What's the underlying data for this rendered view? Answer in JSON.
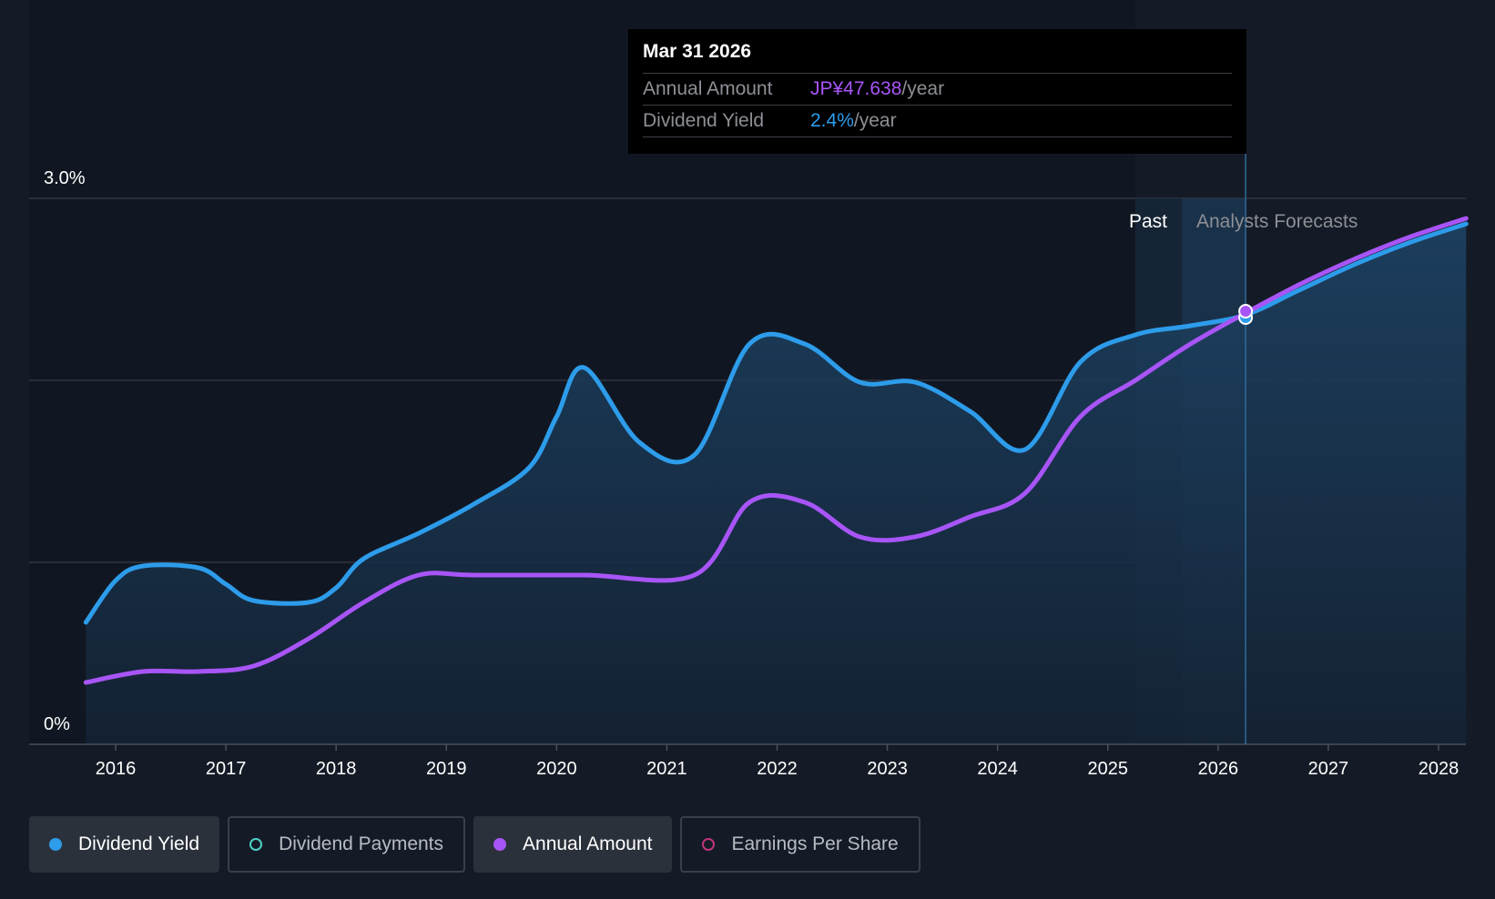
{
  "tooltip": {
    "date": "Mar 31 2026",
    "annual_label": "Annual Amount",
    "annual_value": "JP¥47.638",
    "annual_unit": "/year",
    "yield_label": "Dividend Yield",
    "yield_value": "2.4%",
    "yield_unit": "/year"
  },
  "labels": {
    "past": "Past",
    "forecast": "Analysts Forecasts"
  },
  "legend": {
    "items": [
      {
        "label": "Dividend Yield",
        "color": "#2d9cea",
        "style": "filled"
      },
      {
        "label": "Dividend Payments",
        "color": "#4fd1c5",
        "style": "outlined"
      },
      {
        "label": "Annual Amount",
        "color": "#a855f7",
        "style": "filled"
      },
      {
        "label": "Earnings Per Share",
        "color": "#c0357b",
        "style": "outlined"
      }
    ]
  },
  "chart_data": {
    "type": "line",
    "title": "",
    "xlabel": "",
    "ylabel": "",
    "xlim": [
      2015.5,
      2028.3
    ],
    "ylim": [
      0,
      3.0
    ],
    "y_ticks": [
      {
        "value": 3.0,
        "label": "3.0%"
      },
      {
        "value": 0,
        "label": "0%"
      }
    ],
    "y_gridlines": [
      1.0,
      2.0,
      3.0
    ],
    "x_ticks": [
      2016,
      2017,
      2018,
      2019,
      2020,
      2021,
      2022,
      2023,
      2024,
      2025,
      2026,
      2027,
      2028
    ],
    "past_end": 2025.25,
    "forecast_start": 2025.67,
    "highlight_x": 2026.25,
    "series": [
      {
        "name": "Dividend Yield",
        "color": "#2d9cea",
        "unit": "%",
        "filled": true,
        "points": [
          [
            2015.73,
            0.67
          ],
          [
            2016.0,
            0.9
          ],
          [
            2016.25,
            0.98
          ],
          [
            2016.75,
            0.97
          ],
          [
            2017.0,
            0.88
          ],
          [
            2017.25,
            0.79
          ],
          [
            2017.75,
            0.78
          ],
          [
            2018.0,
            0.86
          ],
          [
            2018.25,
            1.02
          ],
          [
            2018.75,
            1.16
          ],
          [
            2019.25,
            1.32
          ],
          [
            2019.75,
            1.52
          ],
          [
            2020.0,
            1.8
          ],
          [
            2020.25,
            2.07
          ],
          [
            2020.75,
            1.66
          ],
          [
            2021.25,
            1.59
          ],
          [
            2021.75,
            2.2
          ],
          [
            2022.25,
            2.2
          ],
          [
            2022.75,
            1.99
          ],
          [
            2023.25,
            1.99
          ],
          [
            2023.75,
            1.83
          ],
          [
            2024.25,
            1.62
          ],
          [
            2024.75,
            2.1
          ],
          [
            2025.25,
            2.25
          ],
          [
            2025.75,
            2.3
          ],
          [
            2026.25,
            2.36
          ],
          [
            2026.75,
            2.5
          ],
          [
            2027.25,
            2.64
          ],
          [
            2027.75,
            2.76
          ],
          [
            2028.25,
            2.86
          ]
        ]
      },
      {
        "name": "Annual Amount",
        "color": "#a855f7",
        "unit": "JP¥",
        "points": [
          [
            2015.73,
            0.34
          ],
          [
            2016.25,
            0.4
          ],
          [
            2016.75,
            0.4
          ],
          [
            2017.25,
            0.43
          ],
          [
            2017.75,
            0.58
          ],
          [
            2018.25,
            0.78
          ],
          [
            2018.75,
            0.93
          ],
          [
            2019.25,
            0.93
          ],
          [
            2020.25,
            0.93
          ],
          [
            2021.25,
            0.93
          ],
          [
            2021.75,
            1.33
          ],
          [
            2022.25,
            1.33
          ],
          [
            2022.75,
            1.14
          ],
          [
            2023.25,
            1.14
          ],
          [
            2023.75,
            1.25
          ],
          [
            2024.25,
            1.38
          ],
          [
            2024.75,
            1.8
          ],
          [
            2025.25,
            2.0
          ],
          [
            2025.75,
            2.2
          ],
          [
            2026.25,
            2.37
          ],
          [
            2026.75,
            2.53
          ],
          [
            2027.25,
            2.67
          ],
          [
            2027.75,
            2.79
          ],
          [
            2028.25,
            2.89
          ]
        ]
      }
    ]
  }
}
